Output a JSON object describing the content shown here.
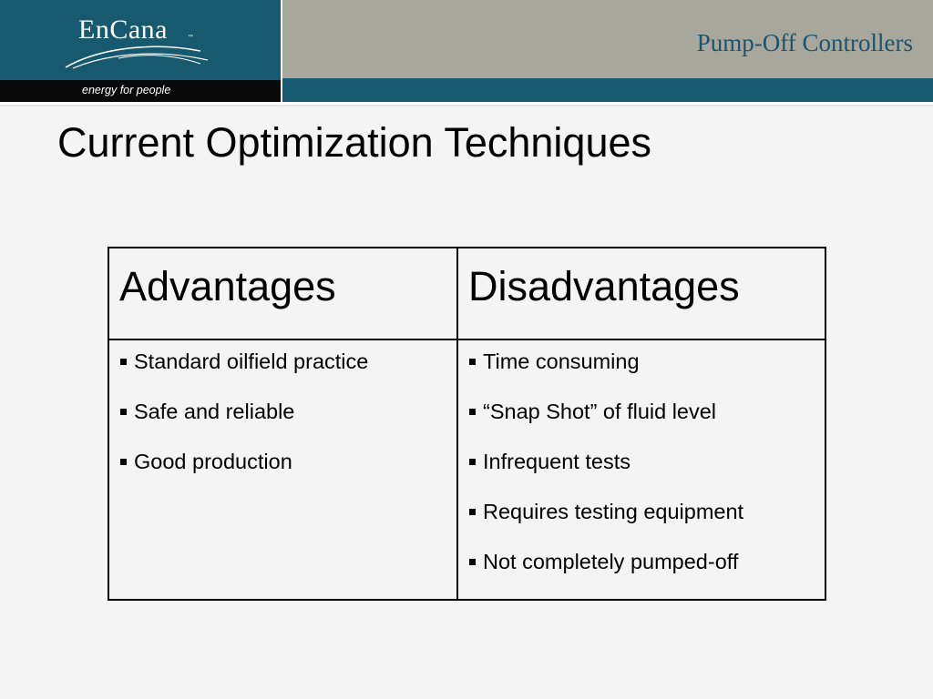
{
  "brand": {
    "logo_text": "EnCana",
    "logo_tm": "™",
    "tagline": "energy for people"
  },
  "header": {
    "section_title": "Pump-Off Controllers"
  },
  "slide": {
    "title": "Current Optimization Techniques"
  },
  "table": {
    "headers": [
      "Advantages",
      "Disadvantages"
    ],
    "advantages": [
      "Standard oilfield practice",
      "Safe and reliable",
      "Good production"
    ],
    "disadvantages": [
      "Time consuming",
      "“Snap Shot” of fluid level",
      "Infrequent tests",
      "Requires testing equipment",
      "Not completely pumped-off"
    ]
  },
  "colors": {
    "teal": "#17596e",
    "grey_band": "#a8a79e",
    "background": "#f4f4f4"
  }
}
